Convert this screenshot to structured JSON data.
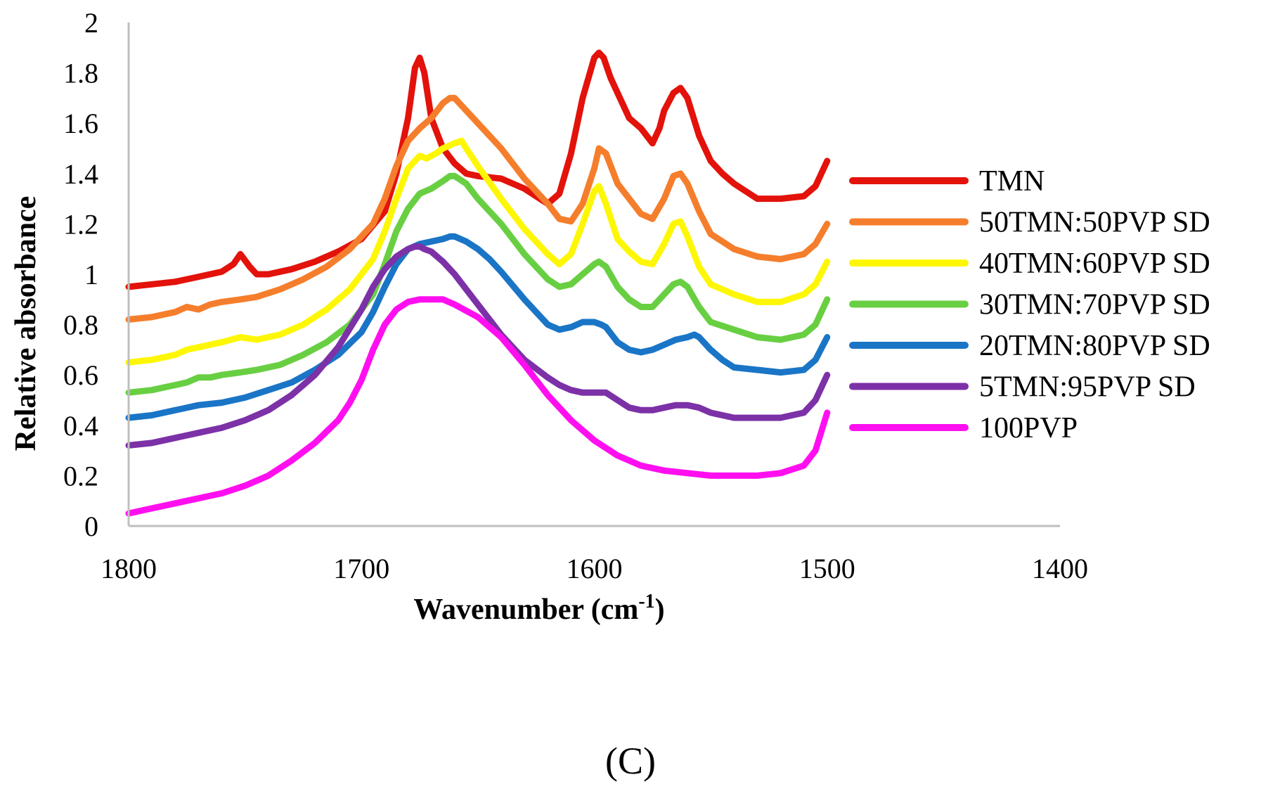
{
  "chart_data": {
    "type": "line",
    "panel_label": "(C)",
    "xlabel_main": "Wavenumber (cm",
    "xlabel_sup": "-1",
    "xlabel_end": ")",
    "ylabel": "Relative absorbance",
    "xlim": [
      1800,
      1400
    ],
    "ylim": [
      0,
      2
    ],
    "xticks": [
      1800,
      1700,
      1600,
      1500,
      1400
    ],
    "yticks": [
      "0",
      "0.2",
      "0.4",
      "0.6",
      "0.8",
      "1",
      "1.2",
      "1.4",
      "1.6",
      "1.8",
      "2"
    ],
    "grid": false,
    "legend_position": "right",
    "series": [
      {
        "name": "TMN",
        "color": "#e3120b",
        "x": [
          1800,
          1790,
          1780,
          1770,
          1760,
          1755,
          1752,
          1748,
          1745,
          1740,
          1730,
          1720,
          1710,
          1700,
          1690,
          1685,
          1680,
          1677,
          1675,
          1673,
          1670,
          1665,
          1660,
          1655,
          1650,
          1640,
          1630,
          1620,
          1615,
          1610,
          1605,
          1600,
          1598,
          1596,
          1593,
          1590,
          1585,
          1580,
          1575,
          1572,
          1570,
          1566,
          1563,
          1560,
          1555,
          1550,
          1545,
          1540,
          1530,
          1520,
          1510,
          1505,
          1500
        ],
        "y": [
          0.95,
          0.96,
          0.97,
          0.99,
          1.01,
          1.04,
          1.08,
          1.03,
          1.0,
          1.0,
          1.02,
          1.05,
          1.09,
          1.14,
          1.25,
          1.4,
          1.62,
          1.82,
          1.86,
          1.8,
          1.62,
          1.5,
          1.44,
          1.4,
          1.39,
          1.38,
          1.34,
          1.28,
          1.32,
          1.48,
          1.7,
          1.86,
          1.88,
          1.86,
          1.78,
          1.72,
          1.62,
          1.58,
          1.52,
          1.58,
          1.65,
          1.72,
          1.74,
          1.7,
          1.55,
          1.45,
          1.4,
          1.36,
          1.3,
          1.3,
          1.31,
          1.35,
          1.45
        ]
      },
      {
        "name": "50TMN:50PVP SD",
        "color": "#f57e2c",
        "x": [
          1800,
          1790,
          1780,
          1775,
          1770,
          1765,
          1760,
          1752,
          1745,
          1735,
          1725,
          1715,
          1705,
          1695,
          1690,
          1685,
          1680,
          1675,
          1670,
          1665,
          1662,
          1660,
          1655,
          1650,
          1640,
          1630,
          1620,
          1615,
          1610,
          1605,
          1600,
          1598,
          1595,
          1590,
          1585,
          1580,
          1575,
          1570,
          1566,
          1563,
          1560,
          1555,
          1550,
          1540,
          1530,
          1520,
          1510,
          1505,
          1500
        ],
        "y": [
          0.82,
          0.83,
          0.85,
          0.87,
          0.86,
          0.88,
          0.89,
          0.9,
          0.91,
          0.94,
          0.98,
          1.03,
          1.1,
          1.2,
          1.3,
          1.43,
          1.53,
          1.58,
          1.62,
          1.68,
          1.7,
          1.7,
          1.65,
          1.6,
          1.5,
          1.38,
          1.28,
          1.22,
          1.21,
          1.28,
          1.42,
          1.5,
          1.48,
          1.36,
          1.3,
          1.24,
          1.22,
          1.3,
          1.39,
          1.4,
          1.36,
          1.25,
          1.16,
          1.1,
          1.07,
          1.06,
          1.08,
          1.12,
          1.2
        ]
      },
      {
        "name": "40TMN:60PVP SD",
        "color": "#fdf705",
        "x": [
          1800,
          1790,
          1780,
          1775,
          1770,
          1765,
          1760,
          1752,
          1745,
          1735,
          1725,
          1715,
          1705,
          1695,
          1690,
          1685,
          1680,
          1675,
          1672,
          1668,
          1665,
          1660,
          1657,
          1655,
          1650,
          1640,
          1630,
          1620,
          1615,
          1610,
          1605,
          1600,
          1598,
          1595,
          1590,
          1585,
          1580,
          1575,
          1570,
          1566,
          1563,
          1560,
          1555,
          1550,
          1540,
          1530,
          1520,
          1510,
          1505,
          1500
        ],
        "y": [
          0.65,
          0.66,
          0.68,
          0.7,
          0.71,
          0.72,
          0.73,
          0.75,
          0.74,
          0.76,
          0.8,
          0.86,
          0.94,
          1.06,
          1.17,
          1.3,
          1.42,
          1.47,
          1.46,
          1.48,
          1.5,
          1.52,
          1.53,
          1.5,
          1.43,
          1.3,
          1.18,
          1.08,
          1.04,
          1.08,
          1.2,
          1.33,
          1.35,
          1.28,
          1.14,
          1.09,
          1.05,
          1.04,
          1.12,
          1.2,
          1.21,
          1.15,
          1.03,
          0.96,
          0.92,
          0.89,
          0.89,
          0.92,
          0.96,
          1.05
        ]
      },
      {
        "name": "30TMN:70PVP SD",
        "color": "#68cf42",
        "x": [
          1800,
          1790,
          1780,
          1775,
          1770,
          1765,
          1760,
          1752,
          1745,
          1735,
          1725,
          1715,
          1705,
          1695,
          1690,
          1685,
          1680,
          1675,
          1670,
          1665,
          1662,
          1660,
          1655,
          1650,
          1640,
          1630,
          1620,
          1615,
          1610,
          1605,
          1600,
          1598,
          1595,
          1590,
          1585,
          1580,
          1575,
          1570,
          1566,
          1563,
          1560,
          1555,
          1550,
          1540,
          1530,
          1520,
          1510,
          1505,
          1500
        ],
        "y": [
          0.53,
          0.54,
          0.56,
          0.57,
          0.59,
          0.59,
          0.6,
          0.61,
          0.62,
          0.64,
          0.68,
          0.73,
          0.8,
          0.92,
          1.04,
          1.17,
          1.26,
          1.32,
          1.34,
          1.37,
          1.39,
          1.39,
          1.36,
          1.3,
          1.2,
          1.08,
          0.98,
          0.95,
          0.96,
          1.0,
          1.04,
          1.05,
          1.03,
          0.95,
          0.9,
          0.87,
          0.87,
          0.92,
          0.96,
          0.97,
          0.95,
          0.87,
          0.81,
          0.78,
          0.75,
          0.74,
          0.76,
          0.8,
          0.9
        ]
      },
      {
        "name": "20TMN:80PVP SD",
        "color": "#1a75c6",
        "x": [
          1800,
          1790,
          1780,
          1770,
          1760,
          1750,
          1740,
          1730,
          1720,
          1710,
          1700,
          1695,
          1690,
          1685,
          1680,
          1675,
          1670,
          1665,
          1662,
          1660,
          1655,
          1650,
          1645,
          1640,
          1630,
          1620,
          1615,
          1610,
          1605,
          1600,
          1597,
          1595,
          1590,
          1585,
          1580,
          1575,
          1570,
          1565,
          1560,
          1557,
          1555,
          1550,
          1545,
          1540,
          1530,
          1520,
          1510,
          1505,
          1500
        ],
        "y": [
          0.43,
          0.44,
          0.46,
          0.48,
          0.49,
          0.51,
          0.54,
          0.57,
          0.62,
          0.68,
          0.77,
          0.85,
          0.95,
          1.04,
          1.1,
          1.12,
          1.13,
          1.14,
          1.15,
          1.15,
          1.13,
          1.1,
          1.06,
          1.01,
          0.9,
          0.8,
          0.78,
          0.79,
          0.81,
          0.81,
          0.8,
          0.79,
          0.73,
          0.7,
          0.69,
          0.7,
          0.72,
          0.74,
          0.75,
          0.76,
          0.75,
          0.7,
          0.66,
          0.63,
          0.62,
          0.61,
          0.62,
          0.66,
          0.75
        ]
      },
      {
        "name": "5TMN:95PVP SD",
        "color": "#7c31a7",
        "x": [
          1800,
          1790,
          1780,
          1770,
          1760,
          1750,
          1740,
          1730,
          1720,
          1710,
          1700,
          1695,
          1690,
          1685,
          1680,
          1677,
          1675,
          1673,
          1670,
          1665,
          1660,
          1655,
          1650,
          1645,
          1640,
          1630,
          1620,
          1615,
          1610,
          1605,
          1600,
          1595,
          1590,
          1585,
          1580,
          1575,
          1570,
          1565,
          1560,
          1555,
          1550,
          1545,
          1540,
          1530,
          1520,
          1510,
          1505,
          1500
        ],
        "y": [
          0.32,
          0.33,
          0.35,
          0.37,
          0.39,
          0.42,
          0.46,
          0.52,
          0.6,
          0.71,
          0.86,
          0.95,
          1.02,
          1.07,
          1.1,
          1.11,
          1.11,
          1.1,
          1.09,
          1.05,
          1.0,
          0.94,
          0.88,
          0.82,
          0.76,
          0.66,
          0.59,
          0.56,
          0.54,
          0.53,
          0.53,
          0.53,
          0.5,
          0.47,
          0.46,
          0.46,
          0.47,
          0.48,
          0.48,
          0.47,
          0.45,
          0.44,
          0.43,
          0.43,
          0.43,
          0.45,
          0.5,
          0.6
        ]
      },
      {
        "name": "100PVP",
        "color": "#ff0ff0",
        "x": [
          1800,
          1790,
          1780,
          1770,
          1760,
          1750,
          1740,
          1730,
          1720,
          1710,
          1705,
          1700,
          1695,
          1690,
          1685,
          1680,
          1675,
          1670,
          1665,
          1660,
          1650,
          1640,
          1630,
          1620,
          1610,
          1600,
          1590,
          1580,
          1570,
          1560,
          1550,
          1540,
          1530,
          1520,
          1510,
          1505,
          1500
        ],
        "y": [
          0.05,
          0.07,
          0.09,
          0.11,
          0.13,
          0.16,
          0.2,
          0.26,
          0.33,
          0.42,
          0.49,
          0.58,
          0.7,
          0.8,
          0.86,
          0.89,
          0.9,
          0.9,
          0.9,
          0.88,
          0.83,
          0.75,
          0.64,
          0.52,
          0.42,
          0.34,
          0.28,
          0.24,
          0.22,
          0.21,
          0.2,
          0.2,
          0.2,
          0.21,
          0.24,
          0.3,
          0.45
        ]
      }
    ]
  }
}
